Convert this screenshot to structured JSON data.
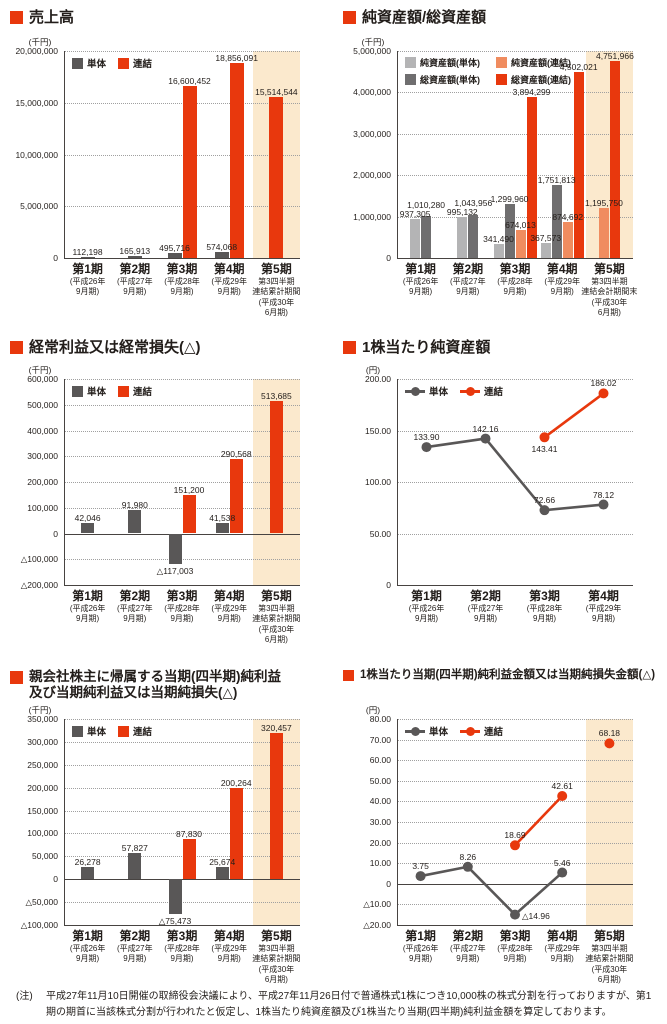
{
  "colors": {
    "red": "#e8380d",
    "salmon": "#f08c5f",
    "gray_dark": "#595757",
    "gray_mid": "#6f6e6f",
    "gray_light": "#b4b4b5",
    "highlight": "#fbe9cd"
  },
  "page": {
    "footnote_label": "(注)",
    "footnote": "平成27年11月10日開催の取締役会決議により、平成27年11月26日付で普通株式1株につき10,000株の株式分割を行っておりますが、第1期の期首に当該株式分割が行われたと仮定し、1株当たり純資産額及び1株当たり当期(四半期)純利益金額を算定しております。"
  },
  "chart_data": [
    {
      "type": "bar",
      "title": "売上高",
      "unit": "(千円)",
      "decimals": 0,
      "ylim": [
        0,
        20000000
      ],
      "ytick": 5000000,
      "highlight_index": 4,
      "categories": [
        {
          "main": "第1期",
          "sub": "(平成26年\n9月期)"
        },
        {
          "main": "第2期",
          "sub": "(平成27年\n9月期)"
        },
        {
          "main": "第3期",
          "sub": "(平成28年\n9月期)"
        },
        {
          "main": "第4期",
          "sub": "(平成29年\n9月期)"
        },
        {
          "main": "第5期",
          "sub": "第3四半期\n連結累計期間\n(平成30年\n6月期)"
        }
      ],
      "series": [
        {
          "name": "単体",
          "color_key": "gray_dark",
          "values": [
            112198,
            165913,
            495716,
            574068,
            null
          ]
        },
        {
          "name": "連結",
          "color_key": "red",
          "values": [
            null,
            null,
            16600452,
            18856091,
            15514544
          ]
        }
      ]
    },
    {
      "type": "bar",
      "title": "純資産額/総資産額",
      "unit": "(千円)",
      "decimals": 0,
      "ylim": [
        0,
        5000000
      ],
      "ytick": 1000000,
      "highlight_index": 4,
      "legend_grid": true,
      "categories": [
        {
          "main": "第1期",
          "sub": "(平成26年\n9月期)"
        },
        {
          "main": "第2期",
          "sub": "(平成27年\n9月期)"
        },
        {
          "main": "第3期",
          "sub": "(平成28年\n9月期)"
        },
        {
          "main": "第4期",
          "sub": "(平成29年\n9月期)"
        },
        {
          "main": "第5期",
          "sub": "第3四半期\n連結会計期間末\n(平成30年\n6月期)"
        }
      ],
      "series": [
        {
          "name": "純資産額(単体)",
          "color_key": "gray_light",
          "values": [
            937305,
            995132,
            341490,
            367573,
            null
          ]
        },
        {
          "name": "総資産額(単体)",
          "color_key": "gray_mid",
          "values": [
            1010280,
            1043956,
            1299960,
            1751813,
            null
          ]
        },
        {
          "name": "純資産額(連結)",
          "color_key": "salmon",
          "values": [
            null,
            null,
            674013,
            874692,
            1195750
          ]
        },
        {
          "name": "総資産額(連結)",
          "color_key": "red",
          "values": [
            null,
            null,
            3894299,
            4502021,
            4751966
          ]
        }
      ]
    },
    {
      "type": "bar",
      "title": "経常利益又は経常損失(△)",
      "unit": "(千円)",
      "decimals": 0,
      "ylim": [
        -200000,
        600000
      ],
      "ytick": 100000,
      "highlight_index": 4,
      "categories": [
        {
          "main": "第1期",
          "sub": "(平成26年\n9月期)"
        },
        {
          "main": "第2期",
          "sub": "(平成27年\n9月期)"
        },
        {
          "main": "第3期",
          "sub": "(平成28年\n9月期)"
        },
        {
          "main": "第4期",
          "sub": "(平成29年\n9月期)"
        },
        {
          "main": "第5期",
          "sub": "第3四半期\n連結累計期間\n(平成30年\n6月期)"
        }
      ],
      "series": [
        {
          "name": "単体",
          "color_key": "gray_dark",
          "values": [
            42046,
            91980,
            -117003,
            41538,
            null
          ]
        },
        {
          "name": "連結",
          "color_key": "red",
          "values": [
            null,
            null,
            151200,
            290568,
            513685
          ]
        }
      ]
    },
    {
      "type": "line",
      "title": "1株当たり純資産額",
      "unit": "(円)",
      "decimals": 2,
      "ylim": [
        0,
        200
      ],
      "ytick": 50,
      "highlight_index": null,
      "categories": [
        {
          "main": "第1期",
          "sub": "(平成26年\n9月期)"
        },
        {
          "main": "第2期",
          "sub": "(平成27年\n9月期)"
        },
        {
          "main": "第3期",
          "sub": "(平成28年\n9月期)"
        },
        {
          "main": "第4期",
          "sub": "(平成29年\n9月期)"
        }
      ],
      "series": [
        {
          "name": "単体",
          "color_key": "gray_dark",
          "values": [
            133.9,
            142.16,
            72.66,
            78.12
          ],
          "label_pos": [
            "above",
            "above",
            "above",
            "above"
          ]
        },
        {
          "name": "連結",
          "color_key": "red",
          "values": [
            null,
            null,
            143.41,
            186.02
          ],
          "label_pos": [
            null,
            null,
            "below",
            "above"
          ]
        }
      ]
    },
    {
      "type": "bar",
      "title": "親会社株主に帰属する当期(四半期)純利益\n及び当期純利益又は当期純損失(△)",
      "unit": "(千円)",
      "decimals": 0,
      "ylim": [
        -100000,
        350000
      ],
      "ytick": 50000,
      "highlight_index": 4,
      "categories": [
        {
          "main": "第1期",
          "sub": "(平成26年\n9月期)"
        },
        {
          "main": "第2期",
          "sub": "(平成27年\n9月期)"
        },
        {
          "main": "第3期",
          "sub": "(平成28年\n9月期)"
        },
        {
          "main": "第4期",
          "sub": "(平成29年\n9月期)"
        },
        {
          "main": "第5期",
          "sub": "第3四半期\n連結累計期間\n(平成30年\n6月期)"
        }
      ],
      "series": [
        {
          "name": "単体",
          "color_key": "gray_dark",
          "values": [
            26278,
            57827,
            -75473,
            25674,
            null
          ]
        },
        {
          "name": "連結",
          "color_key": "red",
          "values": [
            null,
            null,
            87830,
            200264,
            320457
          ]
        }
      ]
    },
    {
      "type": "line",
      "title": "1株当たり当期(四半期)純利益金額又は当期純損失金額(△)",
      "unit": "(円)",
      "decimals": 2,
      "ylim": [
        -20,
        80
      ],
      "ytick": 10,
      "highlight_index": 4,
      "categories": [
        {
          "main": "第1期",
          "sub": "(平成26年\n9月期)"
        },
        {
          "main": "第2期",
          "sub": "(平成27年\n9月期)"
        },
        {
          "main": "第3期",
          "sub": "(平成28年\n9月期)"
        },
        {
          "main": "第4期",
          "sub": "(平成29年\n9月期)"
        },
        {
          "main": "第5期",
          "sub": "第3四半期\n連結累計期間\n(平成30年\n6月期)"
        }
      ],
      "series": [
        {
          "name": "単体",
          "color_key": "gray_dark",
          "values": [
            3.75,
            8.26,
            -14.96,
            5.46,
            null
          ],
          "label_pos": [
            "above",
            "above",
            "right",
            "above",
            null
          ]
        },
        {
          "name": "連結",
          "color_key": "red",
          "values": [
            null,
            null,
            18.69,
            42.61,
            68.18
          ],
          "segments": [
            [
              2,
              3
            ]
          ],
          "label_pos": [
            null,
            null,
            "above",
            "above",
            "above"
          ]
        }
      ]
    }
  ]
}
